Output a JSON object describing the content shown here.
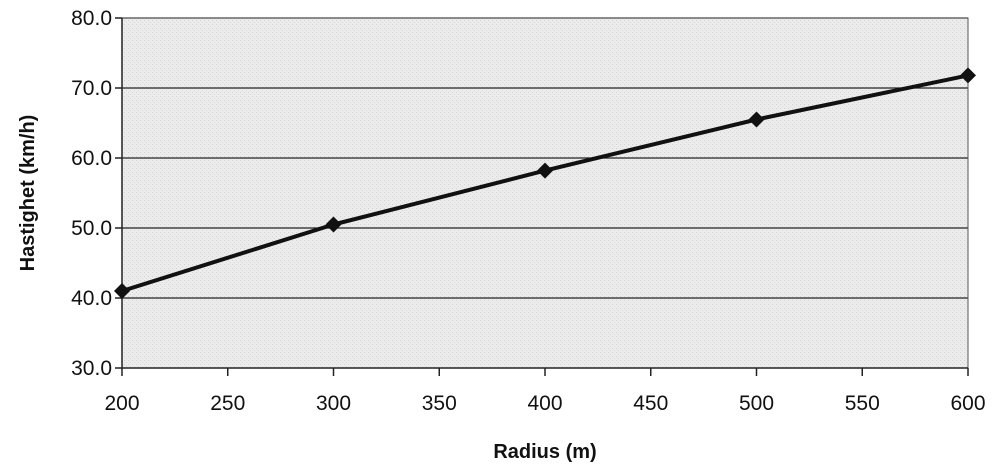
{
  "chart_data": {
    "type": "line",
    "title": "",
    "xlabel": "Radius (m)",
    "ylabel": "Hastighet (km/h)",
    "xlim": [
      200,
      600
    ],
    "ylim": [
      30,
      80
    ],
    "x_ticks": [
      200,
      250,
      300,
      350,
      400,
      450,
      500,
      550,
      600
    ],
    "y_ticks": [
      "30.0",
      "40.0",
      "50.0",
      "60.0",
      "70.0",
      "80.0"
    ],
    "grid": "horizontal",
    "legend": "none",
    "plot_background": "#e9e9e9",
    "line_color": "#111111",
    "marker": "diamond",
    "series": [
      {
        "x": [
          200,
          300,
          400,
          500,
          600
        ],
        "values": [
          41.0,
          50.5,
          58.2,
          65.5,
          71.8
        ]
      }
    ]
  }
}
